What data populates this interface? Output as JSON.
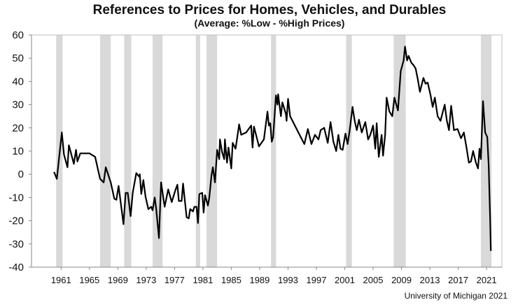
{
  "chart_data": {
    "type": "line",
    "title": "References to Prices for Homes, Vehicles, and Durables",
    "subtitle": "(Average:  %Low - %High Prices)",
    "source": "University of Michigan 2021",
    "xlabel": "",
    "ylabel": "",
    "ylim": [
      -40,
      60
    ],
    "xlim": [
      1956.8,
      2023.1
    ],
    "yticks": [
      60,
      50,
      40,
      30,
      20,
      10,
      0,
      -10,
      -20,
      -30,
      -40
    ],
    "xticks": [
      1961,
      1965,
      1969,
      1973,
      1977,
      1981,
      1985,
      1989,
      1993,
      1997,
      2001,
      2005,
      2009,
      2013,
      2017,
      2021
    ],
    "grid": false,
    "legend": "none",
    "line_color": "#000000",
    "recession_color": "#d9d9d9",
    "recessions": [
      [
        1960.3,
        1961.2
      ],
      [
        1966.5,
        1968.0
      ],
      [
        1969.9,
        1970.9
      ],
      [
        1973.9,
        1975.3
      ],
      [
        1980.0,
        1980.6
      ],
      [
        1981.5,
        1983.0
      ],
      [
        1990.6,
        1991.3
      ],
      [
        2001.2,
        2002.0
      ],
      [
        2007.9,
        2009.6
      ],
      [
        2020.2,
        2021.7
      ]
    ],
    "series": [
      {
        "x": [
          1960.0,
          1960.4,
          1961.1,
          1961.4,
          1961.9,
          1962.1,
          1962.8,
          1963.1,
          1963.3,
          1963.7,
          1965.0,
          1965.8,
          1966.5,
          1967.0,
          1967.3,
          1968.0,
          1968.5,
          1968.8,
          1969.1,
          1969.8,
          1970.1,
          1970.4,
          1970.8,
          1971.1,
          1971.6,
          1972.0,
          1972.1,
          1972.3,
          1972.6,
          1972.9,
          1973.3,
          1973.7,
          1973.9,
          1974.2,
          1974.4,
          1974.8,
          1975.1,
          1975.6,
          1976.1,
          1976.6,
          1977.1,
          1977.4,
          1977.6,
          1978.0,
          1978.2,
          1978.7,
          1979.0,
          1979.2,
          1979.6,
          1979.8,
          1980.1,
          1980.3,
          1980.5,
          1980.9,
          1981.1,
          1981.3,
          1981.7,
          1981.9,
          1982.2,
          1982.4,
          1982.7,
          1983.0,
          1983.3,
          1983.4,
          1983.7,
          1984.0,
          1984.1,
          1984.4,
          1984.6,
          1985.0,
          1985.2,
          1985.6,
          1985.8,
          1986.1,
          1986.4,
          1987.1,
          1987.8,
          1988.0,
          1988.2,
          1988.7,
          1988.9,
          1989.6,
          1990.1,
          1990.3,
          1990.5,
          1990.7,
          1990.9,
          1991.3,
          1991.5,
          1991.6,
          1992.0,
          1992.2,
          1992.7,
          1992.8,
          1993.0,
          1993.3,
          1993.8,
          1994.3,
          1994.8,
          1995.3,
          1995.8,
          1996.3,
          1996.8,
          1997.3,
          1997.6,
          1998.1,
          1998.6,
          1999.0,
          1999.4,
          1999.8,
          2000.1,
          2000.4,
          2000.7,
          2001.1,
          2001.4,
          2001.7,
          2002.1,
          2002.4,
          2002.7,
          2003.0,
          2003.4,
          2003.9,
          2004.3,
          2004.6,
          2005.0,
          2005.3,
          2005.5,
          2005.8,
          2006.2,
          2006.4,
          2006.7,
          2006.9,
          2007.3,
          2007.7,
          2008.0,
          2008.5,
          2008.7,
          2008.9,
          2009.3,
          2009.5,
          2009.8,
          2010.0,
          2010.4,
          2010.7,
          2011.0,
          2011.3,
          2011.6,
          2012.1,
          2012.4,
          2012.7,
          2013.1,
          2013.4,
          2013.7,
          2014.1,
          2014.5,
          2015.1,
          2015.4,
          2015.7,
          2016.0,
          2016.4,
          2016.9,
          2017.4,
          2017.8,
          2018.2,
          2018.5,
          2018.8,
          2019.1,
          2019.5,
          2019.8,
          2020.0,
          2020.2,
          2020.5,
          2020.8,
          2021.1,
          2021.3,
          2021.5,
          2021.6
        ],
        "y": [
          1,
          -2,
          18,
          8.5,
          3,
          12.5,
          4.5,
          10.5,
          5.5,
          9,
          9,
          7.5,
          -2,
          -3.5,
          3,
          -3.5,
          -10.5,
          -11,
          -5,
          -21.5,
          -8,
          -8,
          -18,
          -8,
          0.5,
          -1,
          0,
          -8.5,
          -2.5,
          -9.5,
          -15,
          -14,
          -15.5,
          -10,
          -14.5,
          -27.5,
          -3.5,
          -14,
          -6.5,
          -12,
          -7,
          -4.5,
          -11.5,
          -11.5,
          -4,
          -18.5,
          -19,
          -15,
          -16,
          -14,
          -14,
          -21,
          -8.5,
          -8,
          -16.5,
          -9,
          -13.5,
          -10,
          -0.5,
          3,
          -3.5,
          10.5,
          6.5,
          15,
          9.5,
          6.5,
          15,
          5,
          11.5,
          2.5,
          13.5,
          11,
          15,
          21.5,
          17,
          18,
          21,
          11.5,
          20.5,
          14.5,
          12,
          15,
          27,
          21,
          22,
          14,
          16,
          34,
          30,
          34.5,
          25,
          31,
          26,
          23,
          32.5,
          25,
          22,
          19,
          16,
          13,
          19.5,
          13,
          17,
          15,
          19,
          20,
          13.5,
          22.5,
          14,
          10,
          17,
          11,
          10.5,
          17.5,
          13,
          19,
          29,
          23,
          19,
          23.5,
          18,
          22.5,
          15,
          17,
          21,
          11,
          22,
          7.5,
          17,
          8,
          17,
          33,
          27,
          25,
          33,
          27.5,
          36,
          44.5,
          49,
          55,
          49,
          51,
          48,
          47,
          45.5,
          41,
          35.5,
          41.5,
          39,
          39.5,
          34,
          29,
          33,
          25,
          23,
          30,
          23,
          19,
          29.5,
          19,
          19.5,
          15.5,
          18,
          11,
          5,
          5.5,
          10,
          5,
          2.5,
          11,
          6.5,
          31.5,
          18,
          16,
          4,
          -19,
          -33
        ]
      }
    ]
  }
}
